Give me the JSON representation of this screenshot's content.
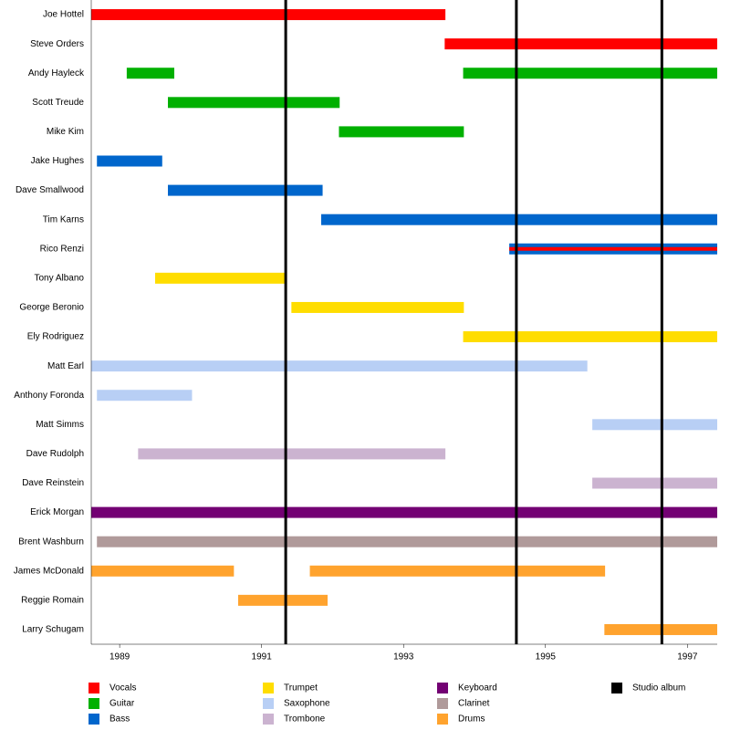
{
  "chart_data": {
    "type": "timeline",
    "xlim": [
      1988.6,
      1997.42
    ],
    "xticks": [
      1989,
      1991,
      1993,
      1995,
      1997
    ],
    "roles": [
      {
        "name": "Vocals",
        "color": "#ff0000"
      },
      {
        "name": "Guitar",
        "color": "#00b000"
      },
      {
        "name": "Bass",
        "color": "#0066cc"
      },
      {
        "name": "Trumpet",
        "color": "#ffdd00"
      },
      {
        "name": "Saxophone",
        "color": "#b8cff5"
      },
      {
        "name": "Trombone",
        "color": "#cbb3d0"
      },
      {
        "name": "Keyboard",
        "color": "#730073"
      },
      {
        "name": "Clarinet",
        "color": "#b09a9a"
      },
      {
        "name": "Drums",
        "color": "#ffa32e"
      }
    ],
    "albums": {
      "name": "Studio album",
      "color": "#000000",
      "x": [
        1991.34,
        1994.59,
        1996.64
      ]
    },
    "members": [
      {
        "name": "Joe Hottel",
        "periods": [
          {
            "role": "Vocals",
            "start": 1988.6,
            "end": 1993.59
          }
        ]
      },
      {
        "name": "Steve Orders",
        "periods": [
          {
            "role": "Vocals",
            "start": 1993.58,
            "end": 1997.42
          }
        ]
      },
      {
        "name": "Andy Hayleck",
        "periods": [
          {
            "role": "Guitar",
            "start": 1989.1,
            "end": 1989.77
          },
          {
            "role": "Guitar",
            "start": 1993.84,
            "end": 1997.42
          }
        ]
      },
      {
        "name": "Scott Treude",
        "periods": [
          {
            "role": "Guitar",
            "start": 1989.68,
            "end": 1992.1
          }
        ]
      },
      {
        "name": "Mike Kim",
        "periods": [
          {
            "role": "Guitar",
            "start": 1992.09,
            "end": 1993.85
          }
        ]
      },
      {
        "name": "Jake Hughes",
        "periods": [
          {
            "role": "Bass",
            "start": 1988.68,
            "end": 1989.6
          }
        ]
      },
      {
        "name": "Dave Smallwood",
        "periods": [
          {
            "role": "Bass",
            "start": 1989.68,
            "end": 1991.86
          }
        ]
      },
      {
        "name": "Tim Karns",
        "periods": [
          {
            "role": "Bass",
            "start": 1991.84,
            "end": 1997.42
          }
        ]
      },
      {
        "name": "Rico Renzi",
        "periods": [
          {
            "role": "Bass",
            "start": 1994.49,
            "end": 1997.42
          },
          {
            "role": "Vocals",
            "start": 1994.49,
            "end": 1997.42
          }
        ]
      },
      {
        "name": "Tony Albano",
        "periods": [
          {
            "role": "Trumpet",
            "start": 1989.5,
            "end": 1991.34
          }
        ]
      },
      {
        "name": "George Beronio",
        "periods": [
          {
            "role": "Trumpet",
            "start": 1991.42,
            "end": 1993.85
          }
        ]
      },
      {
        "name": "Ely Rodriguez",
        "periods": [
          {
            "role": "Trumpet",
            "start": 1993.84,
            "end": 1997.42
          }
        ]
      },
      {
        "name": "Matt Earl",
        "periods": [
          {
            "role": "Saxophone",
            "start": 1988.6,
            "end": 1995.59
          }
        ]
      },
      {
        "name": "Anthony Foronda",
        "periods": [
          {
            "role": "Saxophone",
            "start": 1988.68,
            "end": 1990.02
          }
        ]
      },
      {
        "name": "Matt Simms",
        "periods": [
          {
            "role": "Saxophone",
            "start": 1995.66,
            "end": 1997.42
          }
        ]
      },
      {
        "name": "Dave Rudolph",
        "periods": [
          {
            "role": "Trombone",
            "start": 1989.26,
            "end": 1993.59
          }
        ]
      },
      {
        "name": "Dave Reinstein",
        "periods": [
          {
            "role": "Trombone",
            "start": 1995.66,
            "end": 1997.42
          }
        ]
      },
      {
        "name": "Erick Morgan",
        "periods": [
          {
            "role": "Keyboard",
            "start": 1988.6,
            "end": 1997.42
          }
        ]
      },
      {
        "name": "Brent Washburn",
        "periods": [
          {
            "role": "Clarinet",
            "start": 1988.68,
            "end": 1997.42
          }
        ]
      },
      {
        "name": "James McDonald",
        "periods": [
          {
            "role": "Drums",
            "start": 1988.6,
            "end": 1990.61
          },
          {
            "role": "Drums",
            "start": 1991.68,
            "end": 1995.84
          }
        ]
      },
      {
        "name": "Reggie Romain",
        "periods": [
          {
            "role": "Drums",
            "start": 1990.67,
            "end": 1991.93
          }
        ]
      },
      {
        "name": "Larry Schugam",
        "periods": [
          {
            "role": "Drums",
            "start": 1995.83,
            "end": 1997.42
          }
        ]
      }
    ]
  }
}
